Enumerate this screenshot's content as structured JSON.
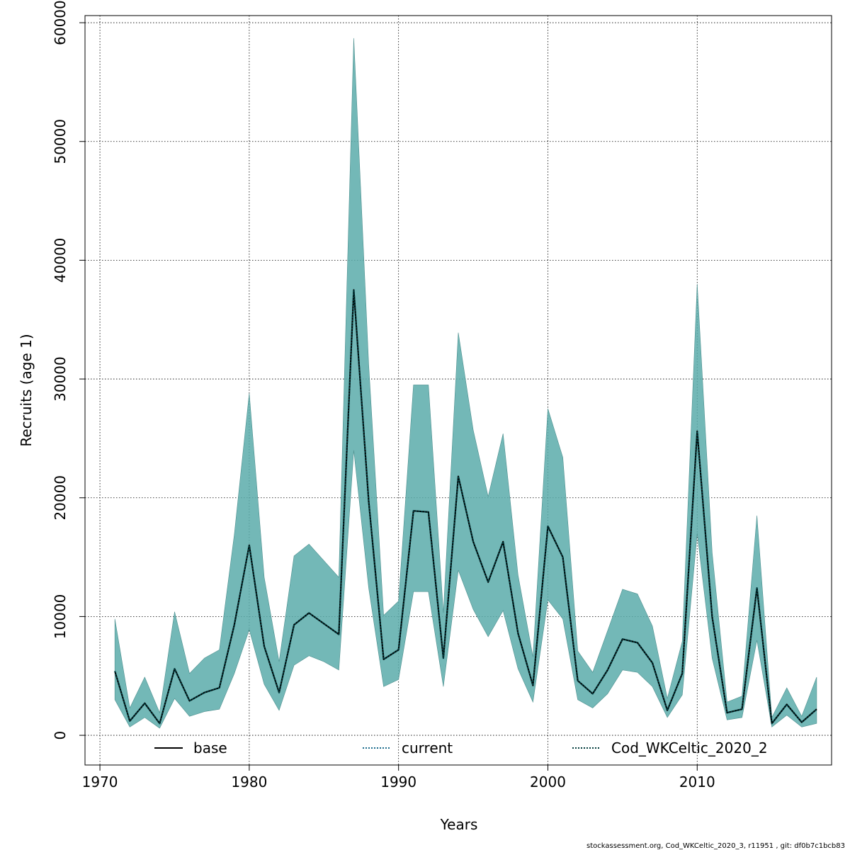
{
  "chart_data": {
    "type": "line",
    "xlabel": "Years",
    "ylabel": "Recruits (age 1)",
    "xlim": [
      1969,
      2019
    ],
    "ylim": [
      -2500,
      60600
    ],
    "x_ticks": [
      1970,
      1980,
      1990,
      2000,
      2010
    ],
    "y_ticks": [
      0,
      10000,
      20000,
      30000,
      40000,
      50000,
      60000
    ],
    "grid": true,
    "legend_placement": "bottom",
    "years": [
      1971,
      1972,
      1973,
      1974,
      1975,
      1976,
      1977,
      1978,
      1979,
      1980,
      1981,
      1982,
      1983,
      1984,
      1985,
      1986,
      1987,
      1988,
      1989,
      1990,
      1991,
      1992,
      1993,
      1994,
      1995,
      1996,
      1997,
      1998,
      1999,
      2000,
      2001,
      2002,
      2003,
      2004,
      2005,
      2006,
      2007,
      2008,
      2009,
      2010,
      2011,
      2012,
      2013,
      2014,
      2015,
      2016,
      2017,
      2018
    ],
    "series": [
      {
        "name": "base",
        "values": [
          5400,
          1200,
          2700,
          1000,
          5600,
          2900,
          3600,
          4000,
          9300,
          16000,
          7500,
          3600,
          9300,
          10300,
          9400,
          8500,
          37500,
          19700,
          6400,
          7200,
          18900,
          18800,
          6500,
          21800,
          16300,
          12900,
          16300,
          8600,
          4200,
          17600,
          15000,
          4600,
          3500,
          5500,
          8100,
          7800,
          6100,
          2100,
          5200,
          25600,
          10000,
          1900,
          2200,
          12400,
          1000,
          2600,
          1100,
          2200
        ]
      },
      {
        "name": "current",
        "values": [
          5400,
          1200,
          2700,
          1000,
          5600,
          2900,
          3600,
          4000,
          9300,
          16000,
          7500,
          3600,
          9300,
          10300,
          9400,
          8500,
          37500,
          19700,
          6400,
          7200,
          18900,
          18800,
          6500,
          21800,
          16300,
          12900,
          16300,
          8600,
          4200,
          17600,
          15000,
          4600,
          3500,
          5500,
          8100,
          7800,
          6100,
          2100,
          5200,
          25600,
          10000,
          1900,
          2200,
          12400,
          1000,
          2600,
          1100,
          2200
        ]
      },
      {
        "name": "Cod_WKCeltic_2020_2",
        "values": [
          5400,
          1200,
          2700,
          1000,
          5600,
          2900,
          3600,
          4000,
          9300,
          16000,
          7500,
          3600,
          9300,
          10300,
          9400,
          8500,
          37500,
          19700,
          6400,
          7200,
          18900,
          18800,
          6500,
          21800,
          16300,
          12900,
          16300,
          8600,
          4200,
          17600,
          15000,
          4600,
          3500,
          5500,
          8100,
          7800,
          6100,
          2100,
          5200,
          25600,
          10000,
          1900,
          2200,
          12400,
          1000,
          2600,
          1100,
          2200
        ],
        "lower": [
          3000,
          700,
          1500,
          600,
          3100,
          1600,
          2000,
          2200,
          5200,
          8900,
          4300,
          2100,
          5900,
          6700,
          6200,
          5500,
          24000,
          12400,
          4100,
          4700,
          12100,
          12100,
          4100,
          13900,
          10600,
          8300,
          10500,
          5600,
          2800,
          11400,
          9800,
          3000,
          2300,
          3500,
          5500,
          5300,
          4100,
          1500,
          3400,
          17000,
          6500,
          1300,
          1500,
          8000,
          700,
          1700,
          700,
          1000
        ],
        "upper": [
          9800,
          2300,
          4900,
          1900,
          10400,
          5200,
          6500,
          7200,
          16900,
          28800,
          13300,
          6200,
          15100,
          16100,
          14700,
          13300,
          58700,
          31200,
          10100,
          11300,
          29500,
          29500,
          10300,
          33900,
          25700,
          20100,
          25400,
          13500,
          6600,
          27500,
          23400,
          7100,
          5300,
          8800,
          12300,
          11900,
          9200,
          3100,
          7900,
          38000,
          15400,
          2800,
          3300,
          18500,
          1500,
          4000,
          1600,
          4900
        ]
      }
    ],
    "band_color": "#5aabaa",
    "series_colors": [
      "#000000",
      "#1a6b8c",
      "#003b3b"
    ]
  },
  "footer_text": "stockassessment.org, Cod_WKCeltic_2020_3, r11951 , git: df0b7c1bcb83"
}
